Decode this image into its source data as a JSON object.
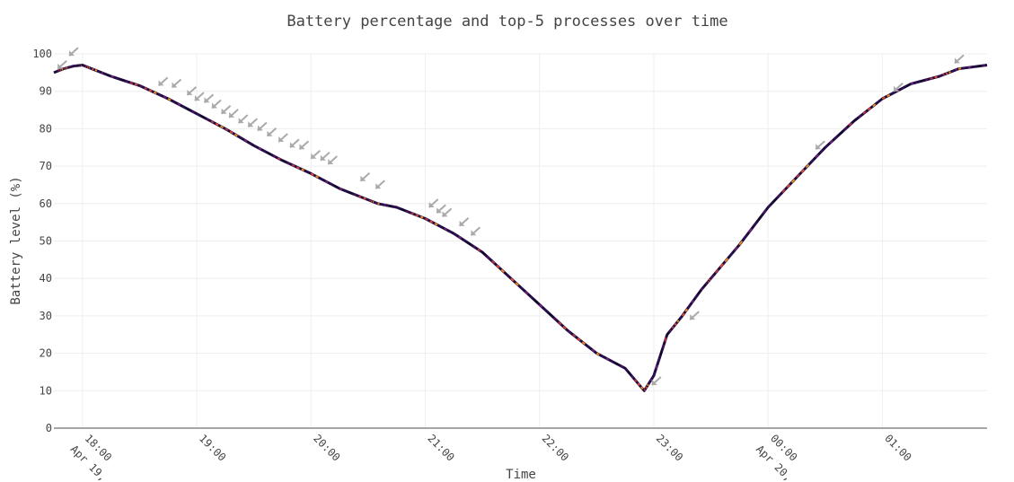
{
  "chart_data": {
    "type": "line",
    "title": "Battery percentage and top-5 processes over time",
    "xlabel": "Time",
    "ylabel": "Battery level (%)",
    "ylim": [
      0,
      100
    ],
    "yticks": [
      0,
      10,
      20,
      30,
      40,
      50,
      60,
      70,
      80,
      90,
      100
    ],
    "xlim": [
      "2024-04-19 17:45",
      "2024-04-20 01:55"
    ],
    "xticks": [
      {
        "t": "2024-04-19 18:00",
        "label": "18:00",
        "sub": "Apr 19, …"
      },
      {
        "t": "2024-04-19 19:00",
        "label": "19:00",
        "sub": ""
      },
      {
        "t": "2024-04-19 20:00",
        "label": "20:00",
        "sub": ""
      },
      {
        "t": "2024-04-19 21:00",
        "label": "21:00",
        "sub": ""
      },
      {
        "t": "2024-04-19 22:00",
        "label": "22:00",
        "sub": ""
      },
      {
        "t": "2024-04-19 23:00",
        "label": "23:00",
        "sub": ""
      },
      {
        "t": "2024-04-20 00:00",
        "label": "00:00",
        "sub": "Apr 20, …"
      },
      {
        "t": "2024-04-20 01:00",
        "label": "01:00",
        "sub": ""
      }
    ],
    "grid": true,
    "legend": "none",
    "series": [
      {
        "t": [
          "2024-04-19 17:45",
          "2024-04-19 17:50",
          "2024-04-19 17:55",
          "2024-04-19 18:00",
          "2024-04-19 18:05",
          "2024-04-19 18:15",
          "2024-04-19 18:30",
          "2024-04-19 18:45",
          "2024-04-19 19:00",
          "2024-04-19 19:15",
          "2024-04-19 19:30",
          "2024-04-19 19:45",
          "2024-04-19 20:00",
          "2024-04-19 20:15",
          "2024-04-19 20:30",
          "2024-04-19 20:35",
          "2024-04-19 20:45",
          "2024-04-19 21:00",
          "2024-04-19 21:15",
          "2024-04-19 21:30",
          "2024-04-19 21:45",
          "2024-04-19 22:00",
          "2024-04-19 22:15",
          "2024-04-19 22:30",
          "2024-04-19 22:45",
          "2024-04-19 22:55",
          "2024-04-19 23:00",
          "2024-04-19 23:07",
          "2024-04-19 23:15",
          "2024-04-19 23:25",
          "2024-04-19 23:30",
          "2024-04-19 23:45",
          "2024-04-20 00:00",
          "2024-04-20 00:15",
          "2024-04-20 00:30",
          "2024-04-20 00:45",
          "2024-04-20 01:00",
          "2024-04-20 01:15",
          "2024-04-20 01:30",
          "2024-04-20 01:40",
          "2024-04-20 01:55"
        ],
        "values": [
          95,
          96,
          96.7,
          97,
          96,
          94,
          91.5,
          88,
          84,
          80,
          75.5,
          71.5,
          68,
          64,
          61,
          60,
          59,
          56,
          52,
          47,
          40,
          33,
          26,
          20,
          16,
          10,
          14,
          25,
          30,
          37,
          40,
          49,
          59,
          67,
          75,
          82,
          88,
          92,
          94,
          96,
          97
        ]
      }
    ],
    "annotations": {
      "marker": "gray arrows pointing down-left (process events)",
      "color": "#aaaaaa",
      "points": [
        {
          "t": "2024-04-19 17:47",
          "v": 96
        },
        {
          "t": "2024-04-19 17:53",
          "v": 99.5
        },
        {
          "t": "2024-04-19 18:40",
          "v": 91.5
        },
        {
          "t": "2024-04-19 18:47",
          "v": 91
        },
        {
          "t": "2024-04-19 18:55",
          "v": 89
        },
        {
          "t": "2024-04-19 18:59",
          "v": 87.5
        },
        {
          "t": "2024-04-19 19:04",
          "v": 87
        },
        {
          "t": "2024-04-19 19:08",
          "v": 85.5
        },
        {
          "t": "2024-04-19 19:13",
          "v": 84
        },
        {
          "t": "2024-04-19 19:17",
          "v": 83
        },
        {
          "t": "2024-04-19 19:22",
          "v": 81.5
        },
        {
          "t": "2024-04-19 19:27",
          "v": 80.5
        },
        {
          "t": "2024-04-19 19:32",
          "v": 79.5
        },
        {
          "t": "2024-04-19 19:37",
          "v": 78
        },
        {
          "t": "2024-04-19 19:43",
          "v": 76.5
        },
        {
          "t": "2024-04-19 19:49",
          "v": 75
        },
        {
          "t": "2024-04-19 19:54",
          "v": 74.5
        },
        {
          "t": "2024-04-19 20:00",
          "v": 72
        },
        {
          "t": "2024-04-19 20:05",
          "v": 71.5
        },
        {
          "t": "2024-04-19 20:09",
          "v": 70.5
        },
        {
          "t": "2024-04-19 20:26",
          "v": 66
        },
        {
          "t": "2024-04-19 20:34",
          "v": 64
        },
        {
          "t": "2024-04-19 21:02",
          "v": 59
        },
        {
          "t": "2024-04-19 21:06",
          "v": 57.5
        },
        {
          "t": "2024-04-19 21:09",
          "v": 56.5
        },
        {
          "t": "2024-04-19 21:18",
          "v": 54
        },
        {
          "t": "2024-04-19 21:24",
          "v": 51.5
        },
        {
          "t": "2024-04-19 22:59",
          "v": 11.5
        },
        {
          "t": "2024-04-19 23:19",
          "v": 29
        },
        {
          "t": "2024-04-20 00:25",
          "v": 74.5
        },
        {
          "t": "2024-04-20 01:06",
          "v": 90
        },
        {
          "t": "2024-04-20 01:38",
          "v": 97.5
        }
      ]
    }
  }
}
